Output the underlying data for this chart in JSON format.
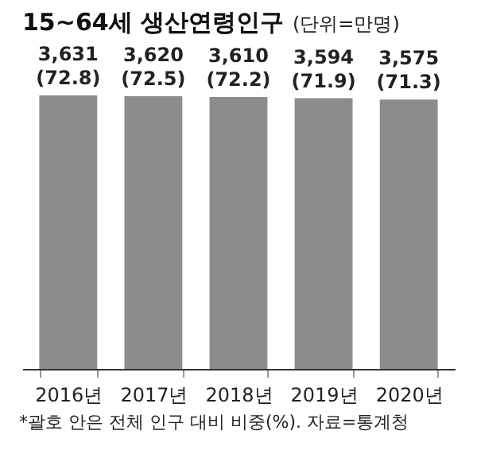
{
  "chart_data": {
    "type": "bar",
    "title": "15~64세 생산연령인구",
    "subtitle": "(단위=만명)",
    "categories": [
      "2016년",
      "2017년",
      "2018년",
      "2019년",
      "2020년"
    ],
    "values": [
      3631,
      3620,
      3610,
      3594,
      3575
    ],
    "value_labels": [
      "3,631\n(72.8)",
      "3,620\n(72.5)",
      "3,610\n(72.2)",
      "3,594\n(71.9)",
      "3,575\n(71.3)"
    ],
    "color": "#8c8c8c",
    "tick_labels": "x",
    "grid": false,
    "annotations": [
      "*괄호 안은 전체 인구 대비 비중(%). 자료=통계청"
    ]
  }
}
